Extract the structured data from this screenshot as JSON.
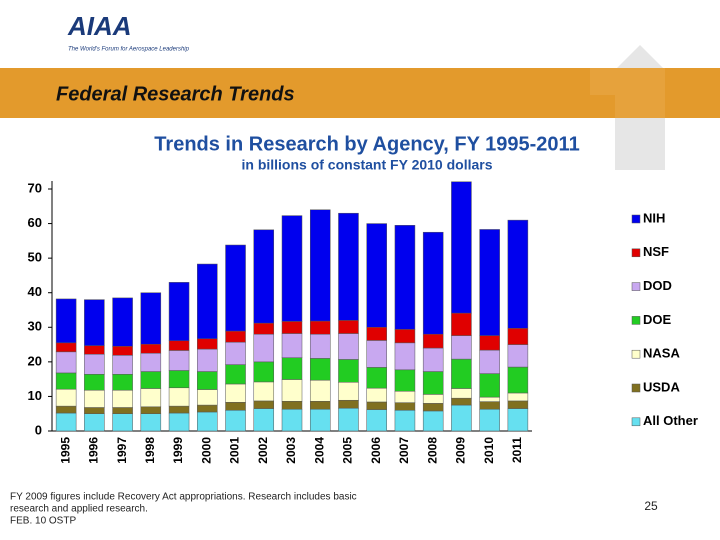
{
  "header": {
    "logo": "AIAA",
    "tagline": "The World's Forum for Aerospace Leadership",
    "title": "Federal Research Trends"
  },
  "chart_data": {
    "type": "stacked_bar",
    "title": "Trends in Research by Agency, FY 1995-2011",
    "subtitle": "in billions of constant FY 2010 dollars",
    "categories": [
      "1995",
      "1996",
      "1997",
      "1998",
      "1999",
      "2000",
      "2001",
      "2002",
      "2003",
      "2004",
      "2005",
      "2006",
      "2007",
      "2008",
      "2009",
      "2010",
      "2011"
    ],
    "ylim": [
      0,
      70
    ],
    "yticks": [
      0,
      10,
      20,
      30,
      40,
      50,
      60,
      70
    ],
    "series": [
      {
        "name": "All Other",
        "color": "#66e0f0",
        "values": [
          5.2,
          5,
          5,
          5,
          5.2,
          5.5,
          6,
          6.5,
          6.3,
          6.3,
          6.6,
          6.2,
          6,
          5.8,
          7.5,
          6.3,
          6.5
        ]
      },
      {
        "name": "USDA",
        "color": "#807020",
        "values": [
          2,
          1.8,
          1.8,
          2,
          2,
          2,
          2.3,
          2.2,
          2.3,
          2.3,
          2.3,
          2.2,
          2.2,
          2.2,
          2,
          2.2,
          2.2
        ]
      },
      {
        "name": "NASA",
        "color": "#ffffcc",
        "values": [
          4.9,
          5,
          5,
          5.3,
          5.3,
          4.5,
          5.3,
          5.5,
          6.3,
          6.1,
          5.2,
          4,
          3.3,
          2.6,
          2.8,
          1.3,
          2.3
        ]
      },
      {
        "name": "DOE",
        "color": "#22cc22",
        "values": [
          4.7,
          4.6,
          4.6,
          4.9,
          5,
          5.2,
          5.6,
          5.8,
          6.3,
          6.3,
          6.6,
          6,
          6.2,
          6.6,
          8.5,
          6.8,
          7.5
        ]
      },
      {
        "name": "DOD",
        "color": "#c8a8f0",
        "values": [
          6.1,
          5.8,
          5.5,
          5.3,
          5.8,
          6.5,
          6.5,
          8,
          7,
          7,
          7.5,
          7.8,
          7.8,
          6.8,
          6.8,
          6.8,
          6.5
        ]
      },
      {
        "name": "NSF",
        "color": "#e00000",
        "values": [
          2.6,
          2.5,
          2.6,
          2.6,
          2.8,
          3,
          3.2,
          3.2,
          3.5,
          3.8,
          3.8,
          3.8,
          3.9,
          4,
          6.5,
          4.2,
          4.7
        ]
      },
      {
        "name": "NIH",
        "color": "#0000ee",
        "values": [
          12.7,
          13.3,
          14,
          14.9,
          16.9,
          21.6,
          24.9,
          27,
          30.6,
          32.2,
          31,
          30,
          30.1,
          29.5,
          38,
          30.7,
          31.3
        ]
      }
    ]
  },
  "footnote": [
    "FY 2009 figures include Recovery Act appropriations. Research includes basic",
    "research and applied research.",
    "FEB. 10 OSTP"
  ],
  "page_number": "25"
}
